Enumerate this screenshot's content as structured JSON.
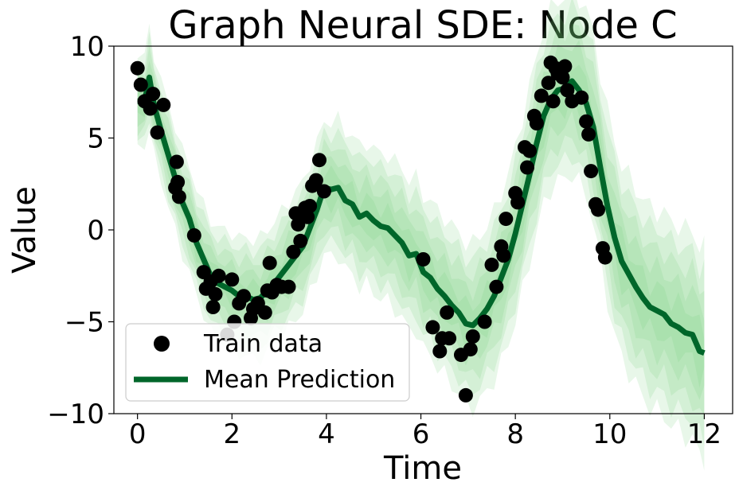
{
  "chart_data": {
    "type": "line",
    "title": "Graph Neural SDE: Node C",
    "xlabel": "Time",
    "ylabel": "Value",
    "xlim": [
      -0.5,
      12.6
    ],
    "ylim": [
      -10,
      10
    ],
    "xticks": [
      0,
      2,
      4,
      6,
      8,
      10,
      12
    ],
    "xtick_labels": [
      "0",
      "2",
      "4",
      "6",
      "8",
      "10",
      "12"
    ],
    "yticks": [
      -10,
      -5,
      0,
      5,
      10
    ],
    "ytick_labels": [
      "−10",
      "−5",
      "0",
      "5",
      "10"
    ],
    "grid": false,
    "legend_position": "lower-left",
    "colors": {
      "mean": "#00662a",
      "band": "#6fce75",
      "points": "#000000"
    },
    "series": [
      {
        "name": "Train data",
        "kind": "scatter",
        "x": [
          0.0,
          0.07,
          0.15,
          0.27,
          0.33,
          0.42,
          0.55,
          0.8,
          0.83,
          0.85,
          0.88,
          1.2,
          1.4,
          1.45,
          1.55,
          1.6,
          1.65,
          1.72,
          1.9,
          2.0,
          2.05,
          2.15,
          2.25,
          2.4,
          2.45,
          2.55,
          2.7,
          2.75,
          2.8,
          2.85,
          2.95,
          3.05,
          3.2,
          3.3,
          3.35,
          3.4,
          3.45,
          3.55,
          3.6,
          3.65,
          3.7,
          3.78,
          3.85,
          3.95,
          6.05,
          6.25,
          6.4,
          6.45,
          6.55,
          6.6,
          6.85,
          6.95,
          7.05,
          7.1,
          7.35,
          7.5,
          7.6,
          7.7,
          7.75,
          7.8,
          8.0,
          8.05,
          8.2,
          8.25,
          8.3,
          8.4,
          8.45,
          8.55,
          8.7,
          8.75,
          8.8,
          8.85,
          8.9,
          9.0,
          9.05,
          9.1,
          9.2,
          9.4,
          9.5,
          9.55,
          9.6,
          9.7,
          9.75,
          9.85,
          9.9
        ],
        "y": [
          8.8,
          7.9,
          7.0,
          6.6,
          7.4,
          5.3,
          6.8,
          2.3,
          3.7,
          2.6,
          1.8,
          -0.3,
          -2.3,
          -3.2,
          -2.8,
          -4.2,
          -3.5,
          -2.5,
          -5.7,
          -2.7,
          -5.0,
          -4.0,
          -3.6,
          -4.8,
          -4.3,
          -4.0,
          -4.5,
          -3.3,
          -1.8,
          -3.4,
          -3.0,
          -3.1,
          -3.1,
          -1.2,
          0.9,
          0.3,
          -0.6,
          1.2,
          0.7,
          1.3,
          2.4,
          2.7,
          3.8,
          2.1,
          -1.6,
          -5.3,
          -6.6,
          -5.9,
          -4.5,
          -5.9,
          -6.8,
          -9.0,
          -6.5,
          -5.8,
          -5.0,
          -1.9,
          -3.1,
          -0.9,
          -1.4,
          0.6,
          2.0,
          1.5,
          4.5,
          3.4,
          4.3,
          6.2,
          5.8,
          7.3,
          8.0,
          9.1,
          7.0,
          8.8,
          8.5,
          8.3,
          8.9,
          7.6,
          7.0,
          7.2,
          5.9,
          5.2,
          3.2,
          1.4,
          1.1,
          -1.0,
          -1.5
        ]
      },
      {
        "name": "Mean Prediction",
        "kind": "line",
        "x": [
          0.0,
          0.15,
          0.25,
          0.35,
          0.5,
          0.65,
          0.8,
          0.95,
          1.1,
          1.25,
          1.4,
          1.55,
          1.7,
          1.85,
          2.0,
          2.15,
          2.3,
          2.45,
          2.6,
          2.75,
          2.9,
          3.05,
          3.2,
          3.35,
          3.5,
          3.65,
          3.8,
          3.95,
          4.1,
          4.25,
          4.4,
          4.55,
          4.7,
          4.85,
          5.0,
          5.15,
          5.3,
          5.45,
          5.6,
          5.75,
          5.9,
          6.05,
          6.2,
          6.35,
          6.5,
          6.65,
          6.8,
          6.95,
          7.1,
          7.25,
          7.4,
          7.55,
          7.7,
          7.85,
          8.0,
          8.15,
          8.3,
          8.45,
          8.6,
          8.75,
          8.9,
          9.05,
          9.2,
          9.35,
          9.5,
          9.65,
          9.8,
          9.95,
          10.1,
          10.25,
          10.4,
          10.55,
          10.7,
          10.85,
          11.0,
          11.15,
          11.3,
          11.45,
          11.6,
          11.75,
          11.9,
          12.0
        ],
        "y": [
          7.0,
          7.0,
          8.3,
          6.8,
          5.4,
          4.1,
          2.8,
          1.5,
          0.6,
          -0.7,
          -1.6,
          -2.5,
          -2.9,
          -3.1,
          -3.3,
          -3.6,
          -3.6,
          -3.8,
          -3.7,
          -3.3,
          -2.9,
          -2.4,
          -1.9,
          -1.4,
          -0.9,
          0.1,
          1.1,
          2.3,
          2.2,
          2.3,
          1.6,
          1.4,
          0.7,
          0.9,
          0.5,
          0.2,
          0.1,
          -0.3,
          -0.7,
          -1.4,
          -1.3,
          -2.3,
          -2.6,
          -3.2,
          -3.6,
          -4.1,
          -4.5,
          -5.1,
          -5.2,
          -4.8,
          -4.3,
          -3.6,
          -2.6,
          -1.6,
          -0.2,
          1.4,
          3.0,
          4.7,
          6.2,
          7.1,
          7.6,
          7.7,
          8.1,
          7.6,
          6.9,
          5.6,
          3.4,
          1.3,
          -0.4,
          -1.7,
          -2.4,
          -3.1,
          -3.7,
          -4.2,
          -4.4,
          -4.6,
          -5.1,
          -5.3,
          -5.6,
          -5.7,
          -6.6,
          -6.7
        ]
      }
    ]
  }
}
